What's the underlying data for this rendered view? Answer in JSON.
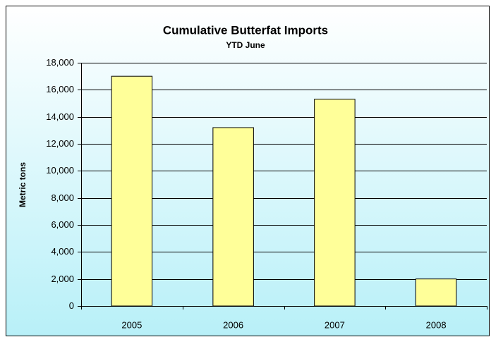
{
  "chart_data": {
    "type": "bar",
    "title": "Cumulative Butterfat Imports",
    "subtitle": "YTD June",
    "y_label": "Metric tons",
    "categories": [
      "2005",
      "2006",
      "2007",
      "2008"
    ],
    "values": [
      17000,
      13200,
      15300,
      2000
    ],
    "color": "#ffff99",
    "ylim": [
      0,
      18000
    ],
    "yticks": [
      0,
      {
        "value": 2000,
        "label": "2,000"
      },
      {
        "value": 4000,
        "label": "4,000"
      },
      {
        "value": 6000,
        "label": "6,000"
      },
      {
        "value": 8000,
        "label": "8,000"
      },
      {
        "value": 10000,
        "label": "10,000"
      },
      {
        "value": 12000,
        "label": "12,000"
      },
      {
        "value": 14000,
        "label": "14,000"
      },
      {
        "value": 16000,
        "label": "16,000"
      },
      {
        "value": 18000,
        "label": "18,000"
      }
    ],
    "grid": true
  }
}
